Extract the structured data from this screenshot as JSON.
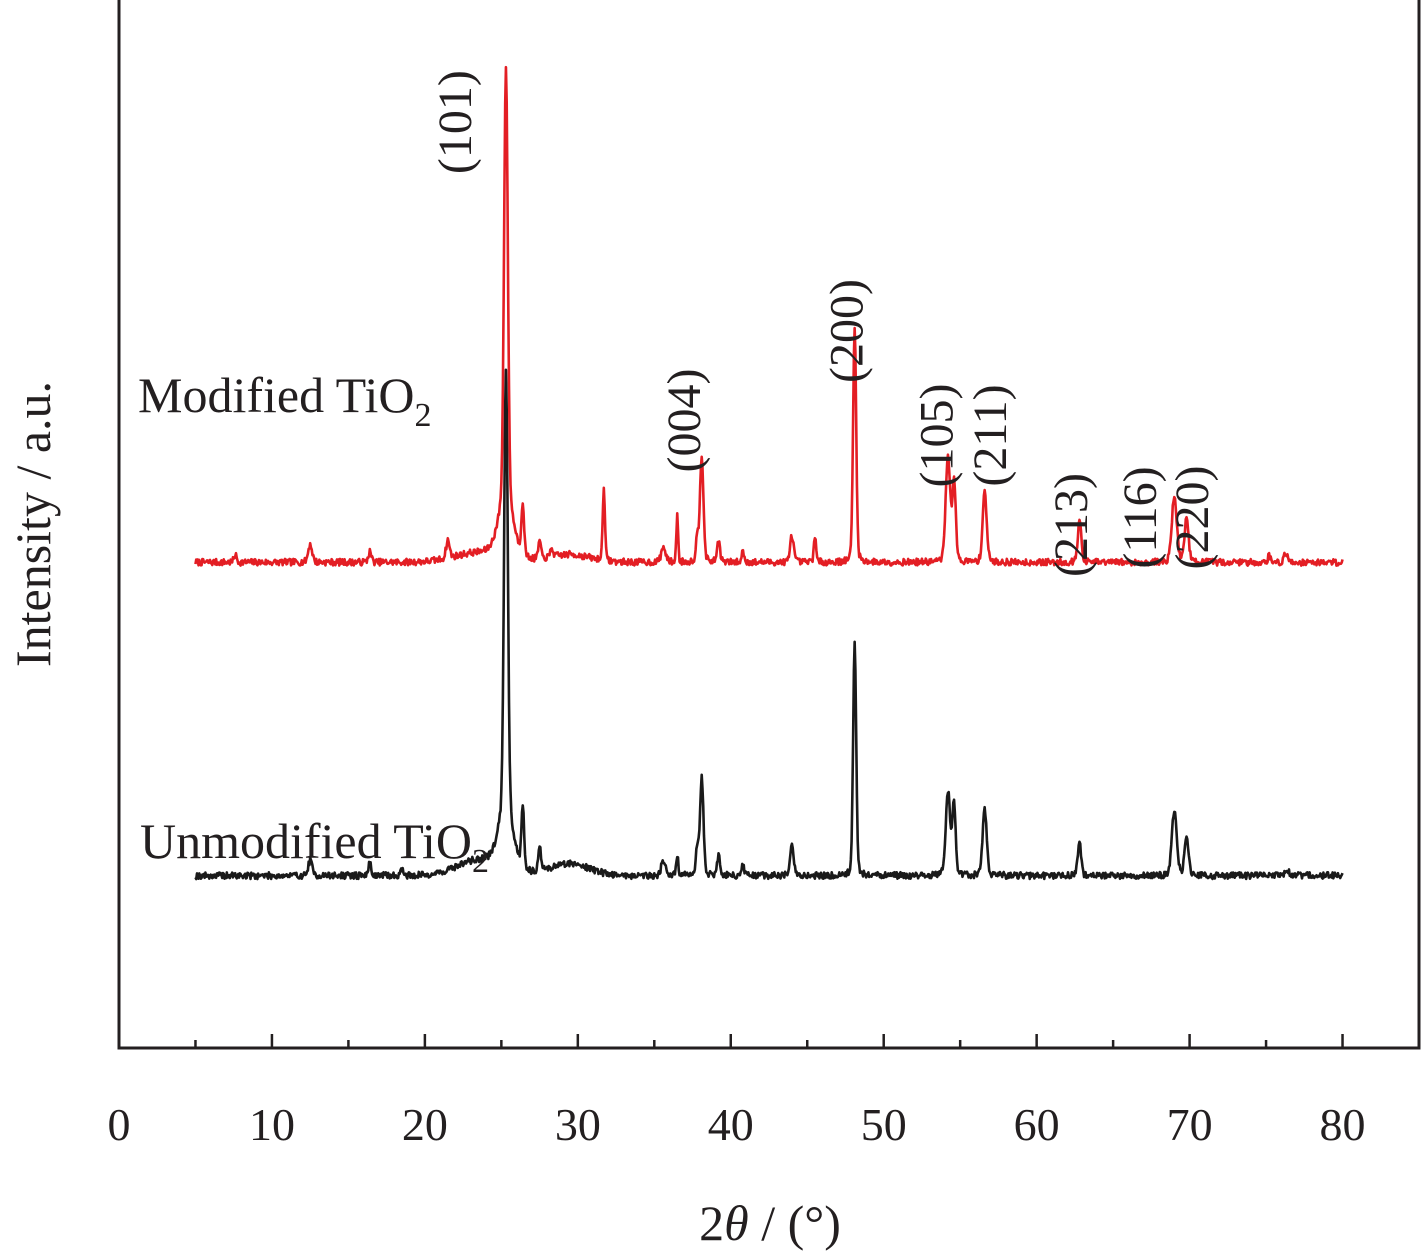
{
  "chart_data": {
    "type": "line",
    "xlabel_prefix": "2",
    "xlabel_symbol": "θ",
    "xlabel_suffix": " / (°)",
    "ylabel": "Intensity / a.u.",
    "xlim": [
      0,
      85
    ],
    "x_ticks": [
      0,
      10,
      20,
      30,
      40,
      50,
      60,
      70,
      80
    ],
    "x_tick_labels": [
      "0",
      "10",
      "20",
      "30",
      "40",
      "50",
      "60",
      "70",
      "80"
    ],
    "y_ticks_shown": false,
    "grid": false,
    "series": [
      {
        "name": "Modified TiO",
        "subscript": "2",
        "color": "#e31e24",
        "baseline": 2.6,
        "noise_seed": 7,
        "x_range": [
          5,
          80
        ],
        "peaks": [
          {
            "x": 7.6,
            "h": 0.05,
            "w": 0.12
          },
          {
            "x": 12.5,
            "h": 0.12,
            "w": 0.18
          },
          {
            "x": 16.4,
            "h": 0.07,
            "w": 0.14
          },
          {
            "x": 21.5,
            "h": 0.12,
            "w": 0.16
          },
          {
            "x": 25.3,
            "h": 2.95,
            "w": 0.17
          },
          {
            "x": 25.3,
            "h": 0.35,
            "w": 0.7
          },
          {
            "x": 26.4,
            "h": 0.35,
            "w": 0.12
          },
          {
            "x": 27.5,
            "h": 0.12,
            "w": 0.12
          },
          {
            "x": 28.3,
            "h": 0.06,
            "w": 0.12
          },
          {
            "x": 31.7,
            "h": 0.5,
            "w": 0.1
          },
          {
            "x": 35.6,
            "h": 0.1,
            "w": 0.2
          },
          {
            "x": 36.5,
            "h": 0.32,
            "w": 0.08
          },
          {
            "x": 38.1,
            "h": 0.72,
            "w": 0.16
          },
          {
            "x": 37.8,
            "h": 0.15,
            "w": 0.12
          },
          {
            "x": 39.2,
            "h": 0.14,
            "w": 0.14
          },
          {
            "x": 40.8,
            "h": 0.08,
            "w": 0.1
          },
          {
            "x": 44.0,
            "h": 0.18,
            "w": 0.16
          },
          {
            "x": 45.5,
            "h": 0.18,
            "w": 0.1
          },
          {
            "x": 48.1,
            "h": 1.58,
            "w": 0.14
          },
          {
            "x": 54.2,
            "h": 0.72,
            "w": 0.2
          },
          {
            "x": 54.6,
            "h": 0.55,
            "w": 0.15
          },
          {
            "x": 56.6,
            "h": 0.48,
            "w": 0.18
          },
          {
            "x": 62.8,
            "h": 0.28,
            "w": 0.16
          },
          {
            "x": 69.0,
            "h": 0.45,
            "w": 0.22
          },
          {
            "x": 69.8,
            "h": 0.3,
            "w": 0.18
          },
          {
            "x": 75.2,
            "h": 0.05,
            "w": 0.1
          },
          {
            "x": 76.3,
            "h": 0.06,
            "w": 0.16
          }
        ],
        "humps": [
          {
            "x": 23.5,
            "h": 0.06,
            "w": 2.2
          },
          {
            "x": 29.5,
            "h": 0.05,
            "w": 1.8
          }
        ]
      },
      {
        "name": "Unmodified TiO",
        "subscript": "2",
        "color": "#1a1a1a",
        "baseline": 0.5,
        "noise_seed": 19,
        "x_range": [
          5,
          80
        ],
        "peaks": [
          {
            "x": 12.5,
            "h": 0.1,
            "w": 0.18
          },
          {
            "x": 16.4,
            "h": 0.08,
            "w": 0.14
          },
          {
            "x": 18.5,
            "h": 0.04,
            "w": 0.14
          },
          {
            "x": 25.3,
            "h": 3.0,
            "w": 0.17
          },
          {
            "x": 25.3,
            "h": 0.35,
            "w": 0.7
          },
          {
            "x": 26.4,
            "h": 0.42,
            "w": 0.12
          },
          {
            "x": 27.5,
            "h": 0.18,
            "w": 0.12
          },
          {
            "x": 35.6,
            "h": 0.1,
            "w": 0.2
          },
          {
            "x": 36.5,
            "h": 0.13,
            "w": 0.1
          },
          {
            "x": 37.8,
            "h": 0.18,
            "w": 0.12
          },
          {
            "x": 38.1,
            "h": 0.65,
            "w": 0.16
          },
          {
            "x": 39.2,
            "h": 0.13,
            "w": 0.15
          },
          {
            "x": 40.8,
            "h": 0.08,
            "w": 0.1
          },
          {
            "x": 44.0,
            "h": 0.2,
            "w": 0.16
          },
          {
            "x": 48.1,
            "h": 1.55,
            "w": 0.14
          },
          {
            "x": 54.2,
            "h": 0.56,
            "w": 0.2
          },
          {
            "x": 54.6,
            "h": 0.48,
            "w": 0.15
          },
          {
            "x": 56.6,
            "h": 0.45,
            "w": 0.18
          },
          {
            "x": 62.8,
            "h": 0.22,
            "w": 0.16
          },
          {
            "x": 69.0,
            "h": 0.43,
            "w": 0.22
          },
          {
            "x": 69.8,
            "h": 0.25,
            "w": 0.18
          },
          {
            "x": 76.4,
            "h": 0.04,
            "w": 0.16
          }
        ],
        "humps": [
          {
            "x": 23.5,
            "h": 0.1,
            "w": 2.0
          },
          {
            "x": 29.5,
            "h": 0.08,
            "w": 1.8
          }
        ]
      }
    ],
    "y_data_range": [
      -0.4,
      6.1
    ],
    "peak_annotations": [
      {
        "label": "(101)",
        "x": 23.0,
        "y": 5.55
      },
      {
        "label": "(004)",
        "x": 38.0,
        "y": 3.55
      },
      {
        "label": "(200)",
        "x": 48.6,
        "y": 4.15
      },
      {
        "label": "(105)",
        "x": 54.5,
        "y": 3.45
      },
      {
        "label": "(211)",
        "x": 58.0,
        "y": 3.45
      },
      {
        "label": "(213)",
        "x": 63.3,
        "y": 2.85
      },
      {
        "label": "(116)",
        "x": 67.8,
        "y": 2.9
      },
      {
        "label": "(220)",
        "x": 71.2,
        "y": 2.9
      }
    ]
  }
}
